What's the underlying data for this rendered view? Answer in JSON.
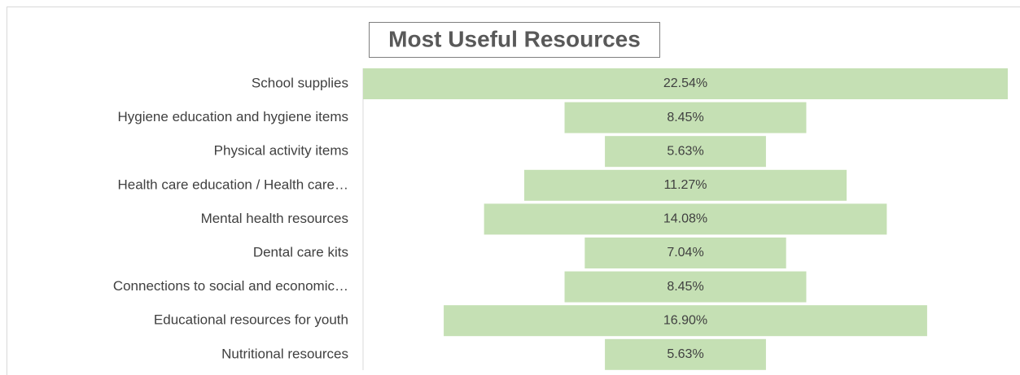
{
  "chart_data": {
    "type": "funnel",
    "title": "Most Useful Resources",
    "categories": [
      "School supplies",
      "Hygiene education and hygiene items",
      "Physical activity items",
      "Health care education / Health care…",
      "Mental health resources",
      "Dental care kits",
      "Connections to social and economic…",
      "Educational resources for youth",
      "Nutritional resources"
    ],
    "values": [
      22.54,
      8.45,
      5.63,
      11.27,
      14.08,
      7.04,
      8.45,
      16.9,
      5.63
    ],
    "value_labels": [
      "22.54%",
      "8.45%",
      "5.63%",
      "11.27%",
      "14.08%",
      "7.04%",
      "8.45%",
      "16.90%",
      "5.63%"
    ],
    "color": "#c5e0b4"
  }
}
